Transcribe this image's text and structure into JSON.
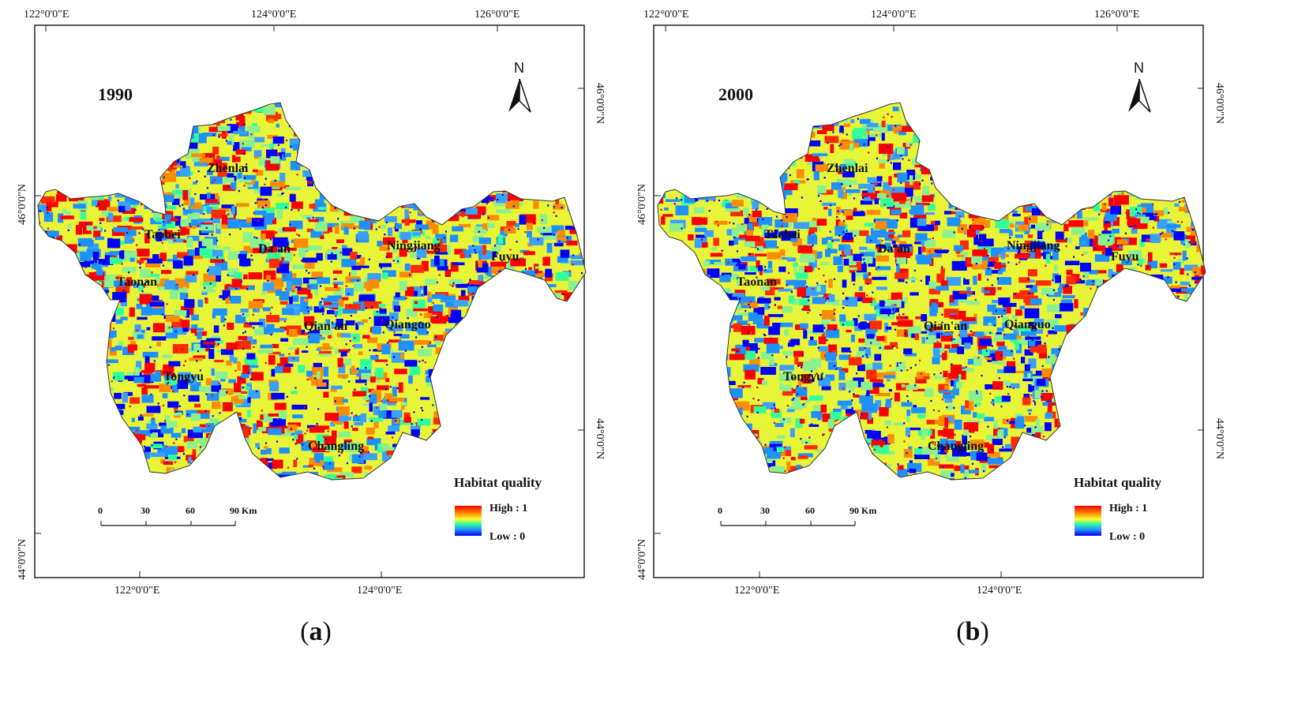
{
  "legend": {
    "title": "Habitat quality",
    "high": "High : 1",
    "low": "Low : 0"
  },
  "scale_bar": {
    "ticks": [
      "0",
      "30",
      "60",
      "90 Km"
    ]
  },
  "north_arrow": {
    "label": "N"
  },
  "graticule": {
    "top": [
      "122°0'0\"E",
      "124°0'0\"E",
      "126°0'0\"E"
    ],
    "bottom": [
      "122°0'0\"E",
      "124°0'0\"E"
    ],
    "left": [
      "46°0'0\"N",
      "44°0'0\"N"
    ],
    "right": [
      "46°0'0\"N",
      "44°0'0\"N"
    ]
  },
  "places": [
    "Zhenlai",
    "Taobei",
    "Da'an",
    "Ningjiang",
    "Fuyu",
    "Taonan",
    "Qian'an",
    "Qianguo",
    "Tongyu",
    "Changling"
  ],
  "color_ramp": [
    "#ff0000",
    "#ff8c00",
    "#ffff33",
    "#33ff99",
    "#1e90ff",
    "#0000ff"
  ],
  "panels": [
    {
      "year": "1990",
      "caption_letter": "a",
      "caption_open": "(",
      "caption_close": ")"
    },
    {
      "year": "2000",
      "caption_letter": "b",
      "caption_open": "(",
      "caption_close": ")"
    }
  ]
}
